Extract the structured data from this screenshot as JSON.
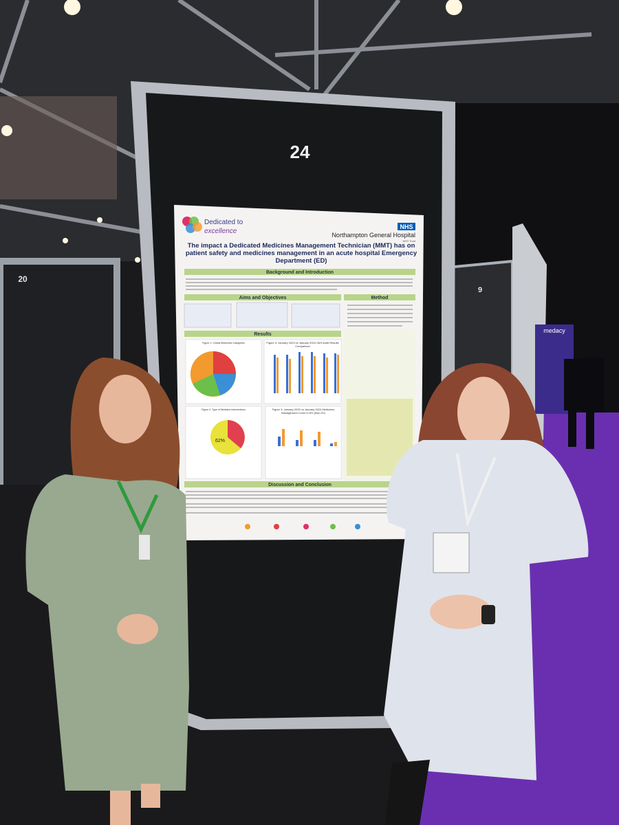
{
  "board_number": "24",
  "side_boards": [
    "20",
    "9"
  ],
  "poster": {
    "logo_line1": "Dedicated to",
    "logo_line2": "excellence",
    "nhs": "NHS",
    "hospital": "Northampton General Hospital",
    "trust": "NHS Trust",
    "title": "The impact a Dedicated Medicines Management Technician (MMT) has on patient safety and medicines management in an acute hospital Emergency Department (ED)",
    "sections": {
      "background": "Background and Introduction",
      "aims": "Aims and Objectives",
      "method": "Method",
      "results": "Results",
      "discussion": "Discussion and Conclusion"
    },
    "figures": [
      "Figure 1: Critical Medicines Categories",
      "Figure 4: January 2023 vs January 2024 S&S Audit Results Comparison",
      "Figure 2: Type of Medicine Interventions",
      "Figure 3: January 2023 vs January 2024 Medicines Management Cover in ED (Mon-Fri)"
    ],
    "pie_label": "62%"
  },
  "banner": "medacy"
}
